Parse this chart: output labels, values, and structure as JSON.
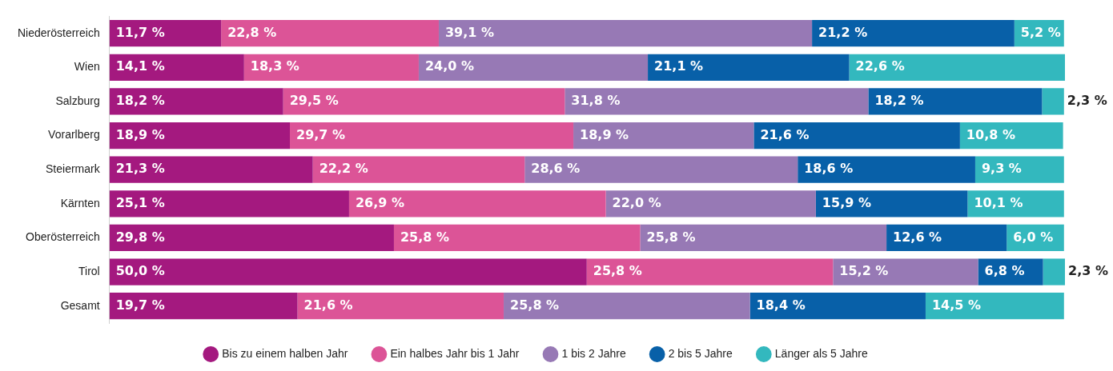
{
  "chart_data": {
    "type": "bar",
    "orientation": "horizontal",
    "stacked": true,
    "categories": [
      "Niederösterreich",
      "Wien",
      "Salzburg",
      "Vorarlberg",
      "Steiermark",
      "Kärnten",
      "Oberösterreich",
      "Tirol",
      "Gesamt"
    ],
    "series": [
      {
        "name": "Bis zu einem halben Jahr",
        "color": "#a4197f",
        "values": [
          11.7,
          14.1,
          18.2,
          18.9,
          21.3,
          25.1,
          29.8,
          50.0,
          19.7
        ],
        "value_labels": [
          "11,7 %",
          "14,1 %",
          "18,2 %",
          "18,9 %",
          "21,3 %",
          "25,1 %",
          "29,8 %",
          "50,0 %",
          "19,7 %"
        ]
      },
      {
        "name": "Ein halbes Jahr bis 1 Jahr",
        "color": "#dc5497",
        "values": [
          22.8,
          18.3,
          29.5,
          29.7,
          22.2,
          26.9,
          25.8,
          25.8,
          21.6
        ],
        "value_labels": [
          "22,8 %",
          "18,3 %",
          "29,5 %",
          "29,7 %",
          "22,2 %",
          "26,9 %",
          "25,8 %",
          "25,8 %",
          "21,6 %"
        ]
      },
      {
        "name": "1 bis 2 Jahre",
        "color": "#9779b5",
        "values": [
          39.1,
          24.0,
          31.8,
          18.9,
          28.6,
          22.0,
          25.8,
          15.2,
          25.8
        ],
        "value_labels": [
          "39,1 %",
          "24,0 %",
          "31,8 %",
          "18,9 %",
          "28,6 %",
          "22,0 %",
          "25,8 %",
          "15,2 %",
          "25,8 %"
        ]
      },
      {
        "name": "2 bis 5 Jahre",
        "color": "#0860a8",
        "values": [
          21.2,
          21.1,
          18.2,
          21.6,
          18.6,
          15.9,
          12.6,
          6.8,
          18.4
        ],
        "value_labels": [
          "21,2 %",
          "21,1 %",
          "18,2 %",
          "21,6 %",
          "18,6 %",
          "15,9 %",
          "12,6 %",
          "6,8 %",
          "18,4 %"
        ]
      },
      {
        "name": "Länger als 5 Jahre",
        "color": "#33b8be",
        "values": [
          5.2,
          22.6,
          2.3,
          10.8,
          9.3,
          10.1,
          6.0,
          2.3,
          14.5
        ],
        "value_labels": [
          "5,2 %",
          "22,6 %",
          "2,3 %",
          "10,8 %",
          "9,3 %",
          "10,1 %",
          "6,0 %",
          "2,3 %",
          "14,5 %"
        ]
      }
    ],
    "xlim": [
      0,
      100.1
    ],
    "tick_labels": "y",
    "grid": false,
    "legend": "bottom",
    "marker": "circle"
  }
}
